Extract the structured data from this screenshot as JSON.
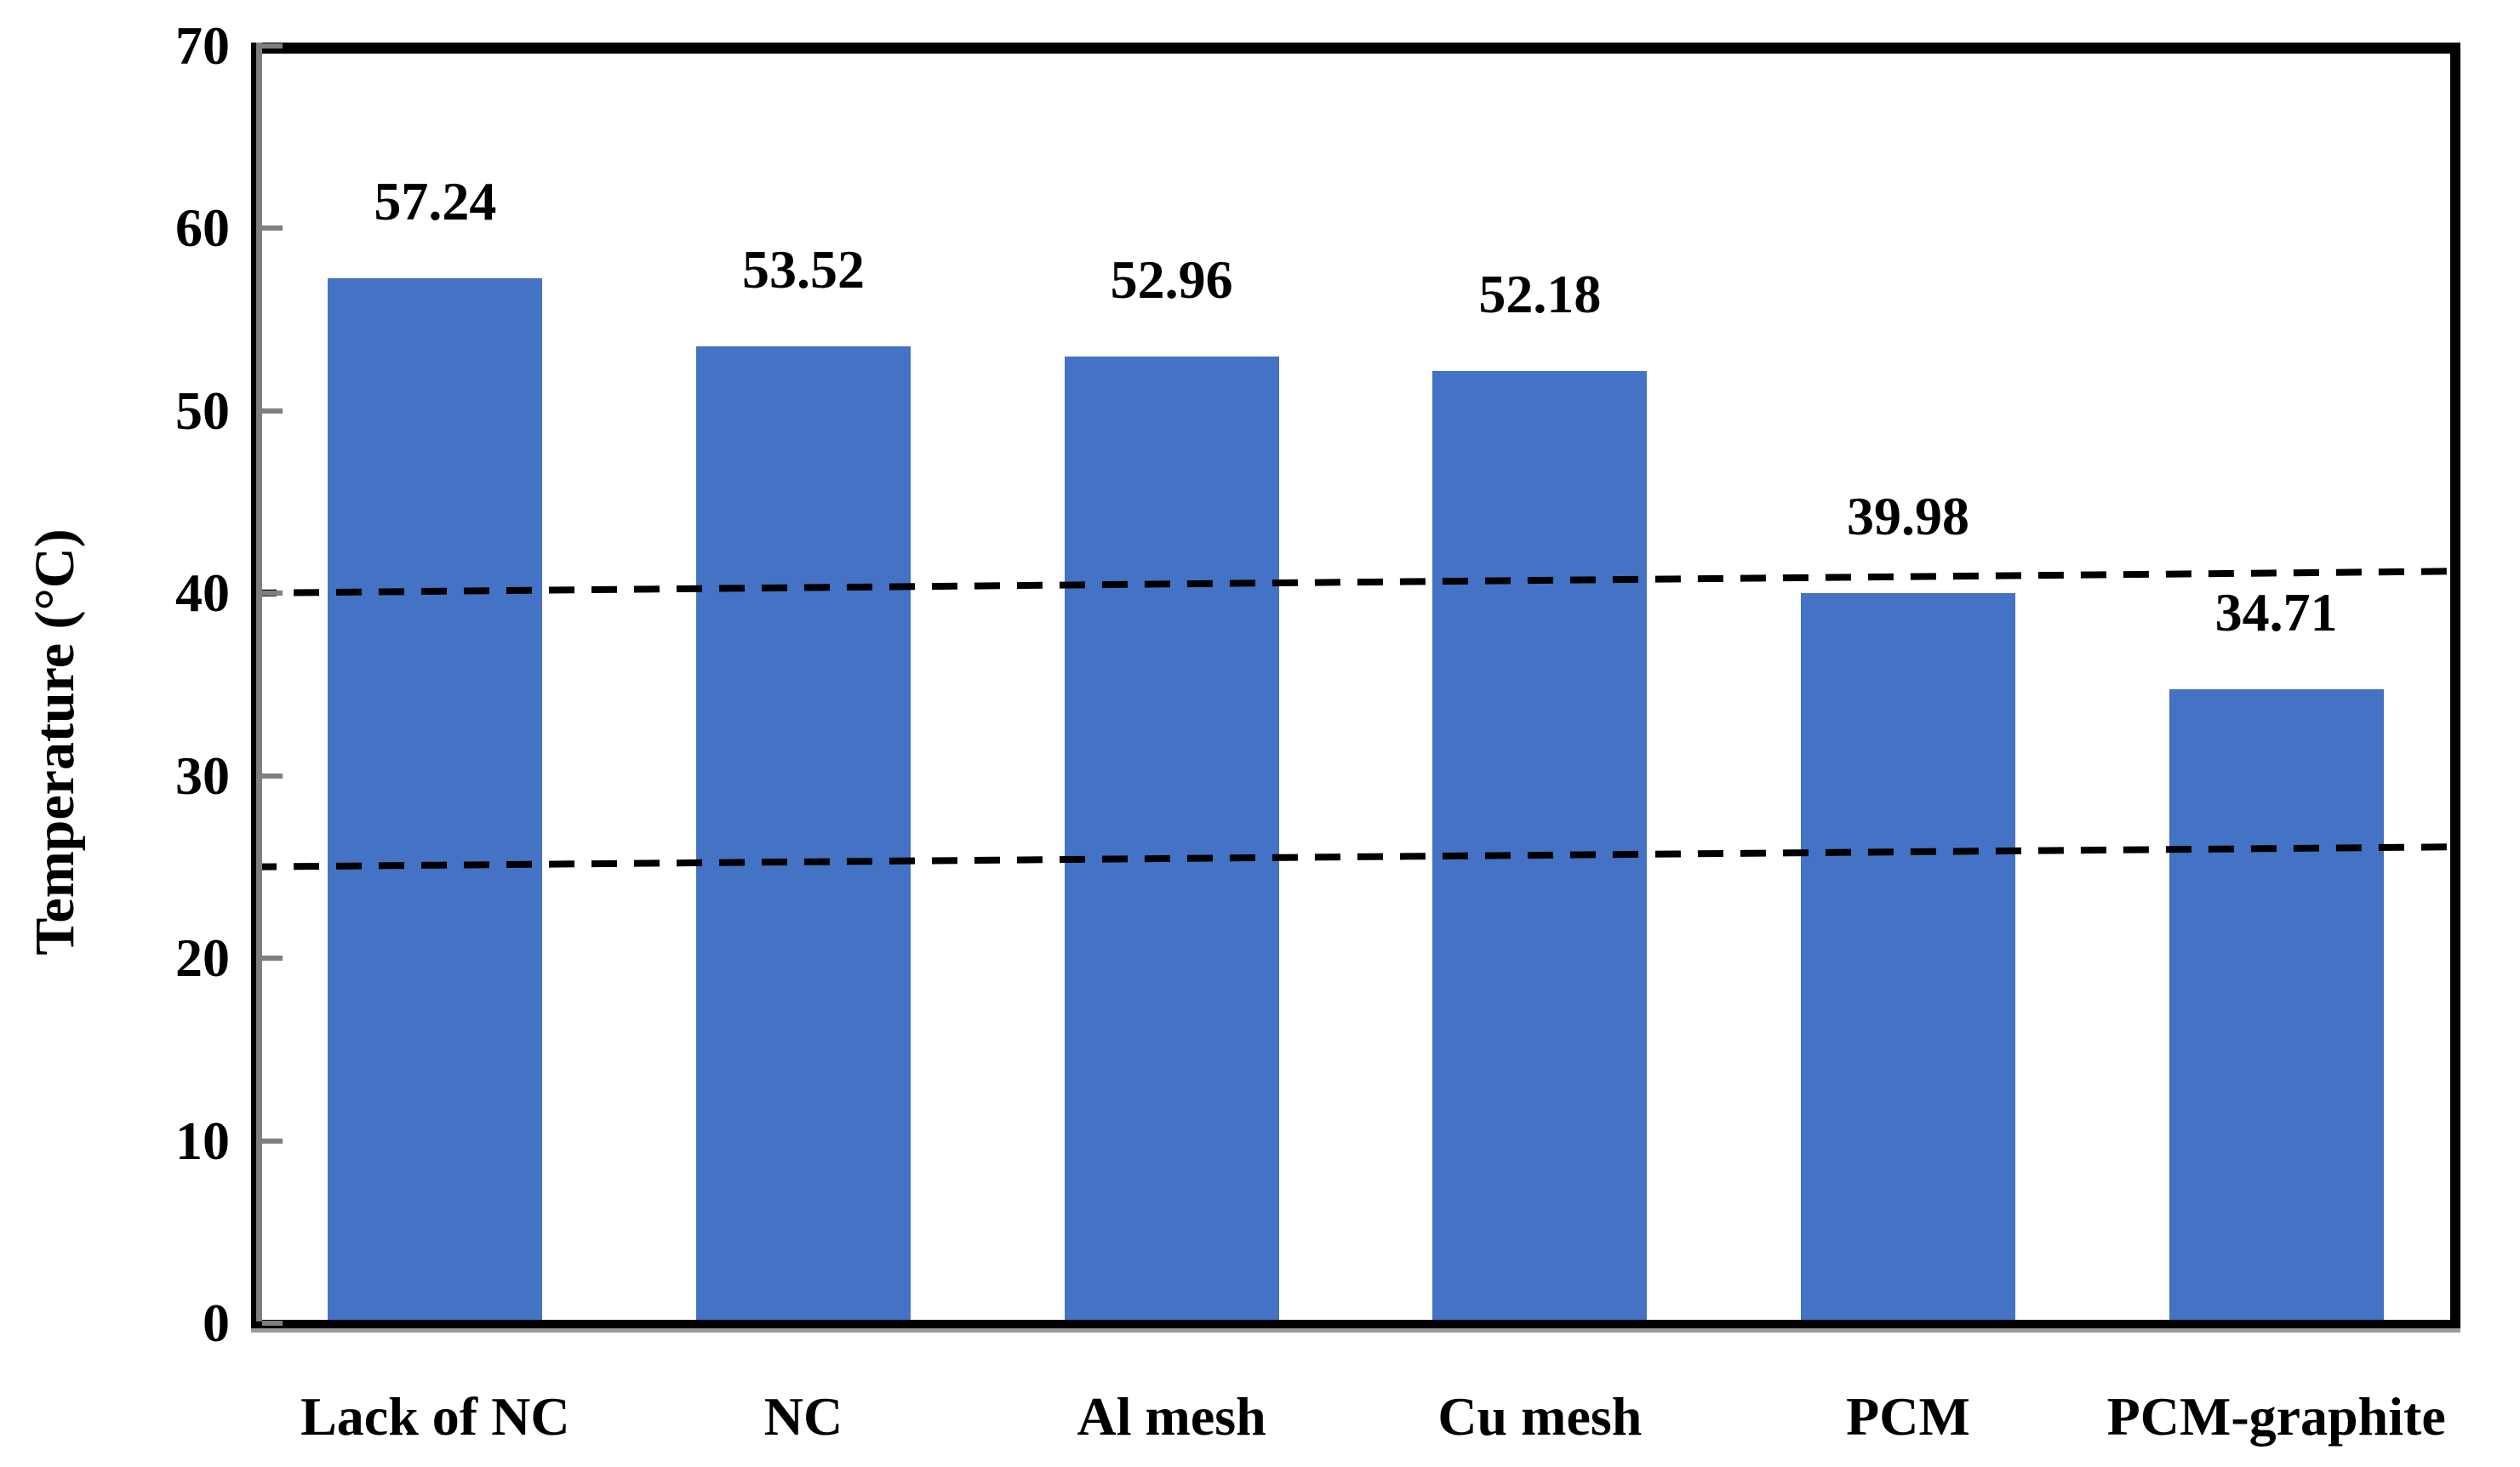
{
  "figure": {
    "background_color": "#ffffff",
    "text_color": "#000000"
  },
  "chart_data": {
    "type": "bar",
    "title": "",
    "categories": [
      "Lack of NC",
      "NC",
      "Al mesh",
      "Cu mesh",
      "PCM",
      "PCM-graphite"
    ],
    "values": [
      57.24,
      53.52,
      52.96,
      52.18,
      39.98,
      34.71
    ],
    "value_labels": [
      "57.24",
      "53.52",
      "52.96",
      "52.18",
      "39.98",
      "34.71"
    ],
    "xlabel": "",
    "ylabel": "Temperature (°C)",
    "ylim": [
      0,
      70
    ],
    "yticks": [
      0,
      10,
      20,
      30,
      40,
      50,
      60,
      70
    ],
    "ytick_labels": [
      "0",
      "10",
      "20",
      "30",
      "40",
      "50",
      "60",
      "70"
    ],
    "bar_color": "#4472C4",
    "axis_color": "#7f7f7f",
    "border_color": "#000000",
    "grid": false,
    "legend": null,
    "reference_lines": [
      {
        "name": "upper-dashed-line",
        "style": "dashed",
        "color": "#000000",
        "y_start": 40.0,
        "y_end": 41.2
      },
      {
        "name": "lower-dashed-line",
        "style": "dashed",
        "color": "#000000",
        "y_start": 25.0,
        "y_end": 26.1
      }
    ]
  }
}
